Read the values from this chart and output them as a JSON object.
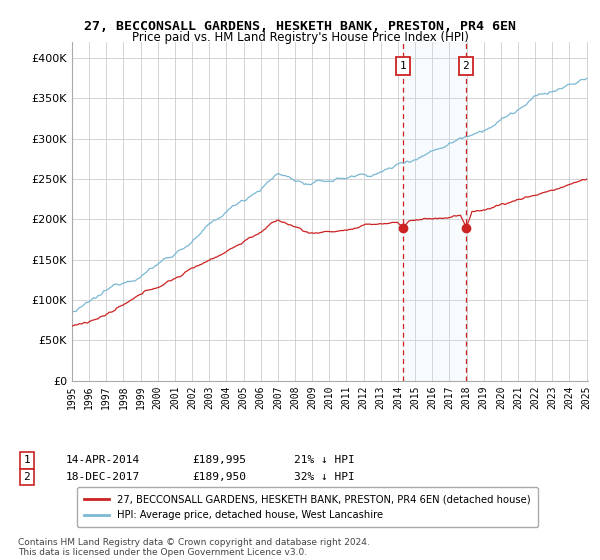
{
  "title": "27, BECCONSALL GARDENS, HESKETH BANK, PRESTON, PR4 6EN",
  "subtitle": "Price paid vs. HM Land Registry's House Price Index (HPI)",
  "hpi_color": "#7bb8d4",
  "hpi_fill_color": "#d6eaf8",
  "price_color": "#cc2222",
  "marker_color": "#cc2222",
  "bg_color": "#ffffff",
  "grid_color": "#cccccc",
  "ylim": [
    0,
    420000
  ],
  "yticks": [
    0,
    50000,
    100000,
    150000,
    200000,
    250000,
    300000,
    350000,
    400000
  ],
  "ytick_labels": [
    "£0",
    "£50K",
    "£100K",
    "£150K",
    "£200K",
    "£250K",
    "£300K",
    "£350K",
    "£400K"
  ],
  "point1_year": 2014.29,
  "point1_price": 189995,
  "point1_date": "14-APR-2014",
  "point1_note": "21% ↓ HPI",
  "point2_year": 2017.96,
  "point2_price": 189950,
  "point2_date": "18-DEC-2017",
  "point2_note": "32% ↓ HPI",
  "legend_house": "27, BECCONSALL GARDENS, HESKETH BANK, PRESTON, PR4 6EN (detached house)",
  "legend_hpi": "HPI: Average price, detached house, West Lancashire",
  "footnote": "Contains HM Land Registry data © Crown copyright and database right 2024.\nThis data is licensed under the Open Government Licence v3.0.",
  "xstart": 1995,
  "xend": 2025
}
